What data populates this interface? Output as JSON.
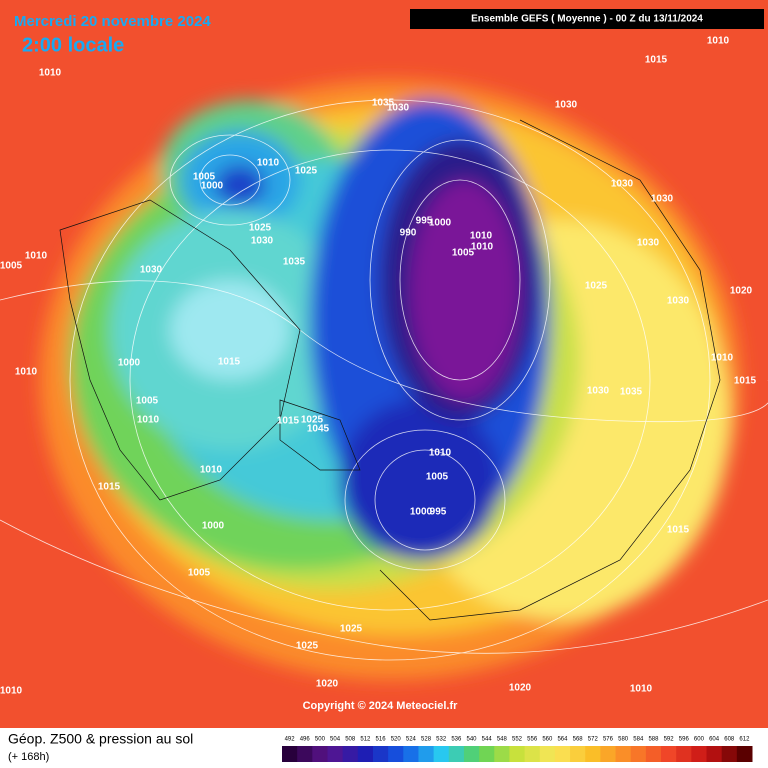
{
  "header": {
    "date": "Mercredi 20 novembre 2024",
    "time": "2:00 locale",
    "model": "Ensemble GEFS  ( Moyenne )  -  00 Z du 13/11/2024"
  },
  "copyright": "Copyright © 2024 Meteociel.fr",
  "footer": {
    "title": "Géop. Z500 & pression au sol",
    "lead": "(+ 168h)"
  },
  "colorbar": {
    "ticks": [
      492,
      496,
      500,
      504,
      508,
      512,
      516,
      520,
      524,
      528,
      532,
      536,
      540,
      544,
      548,
      552,
      556,
      560,
      564,
      568,
      572,
      576,
      580,
      584,
      588,
      592,
      596,
      600,
      604,
      608,
      612
    ]
  },
  "isobars": [
    1010,
    1015,
    1010,
    1035,
    1030,
    1030,
    1005,
    1000,
    1010,
    1025,
    1030,
    1030,
    990,
    995,
    1000,
    1010,
    1010,
    1005,
    1030,
    1025,
    1030,
    1005,
    1010,
    1030,
    1035,
    1025,
    1030,
    1020,
    1000,
    1015,
    1010,
    1010,
    1015,
    1030,
    1035,
    1005,
    1010,
    1015,
    1025,
    1045,
    1010,
    1010,
    1005,
    1015,
    1000,
    995,
    1000,
    1015,
    1005,
    1025,
    1025,
    1020,
    1020,
    1010,
    1010
  ]
}
